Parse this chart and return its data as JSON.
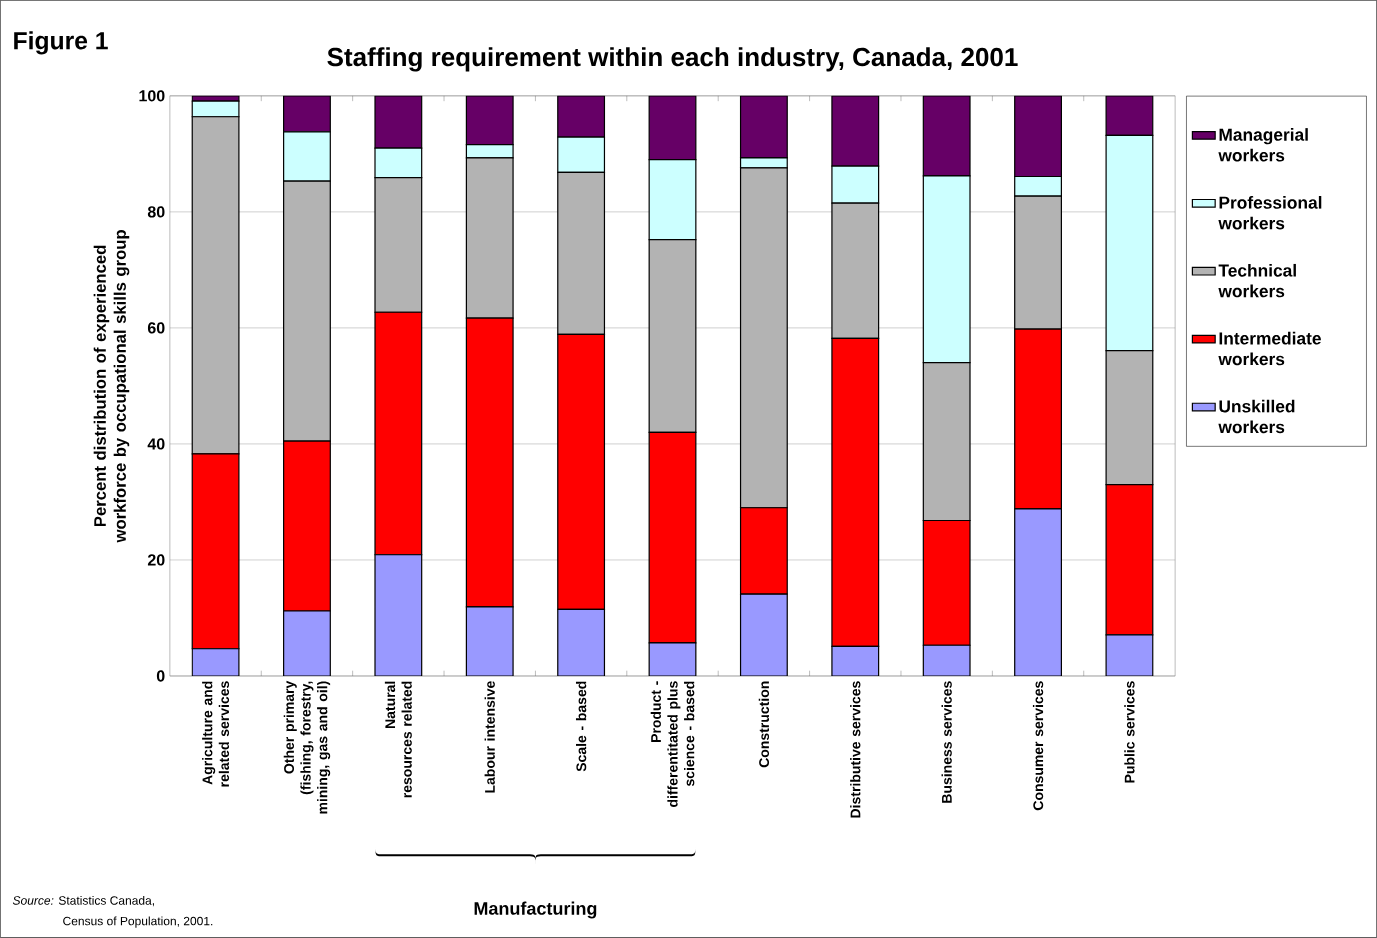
{
  "chart_data": {
    "type": "bar",
    "stacked": true,
    "title": "Staffing requirement within each industry, Canada, 2001",
    "ylabel": "Percent distribution of experienced workforce by occupational skills group",
    "categories": [
      "Agriculture and related services",
      "Other primary (fishing, forestry, mining, gas and oil)",
      "Natural resources related",
      "Labour intensive",
      "Scale - based",
      "Product - differentitated plus science - based",
      "Construction",
      "Distributive services",
      "Business services",
      "Consumer services",
      "Public services"
    ],
    "series": [
      {
        "name": "Unskilled workers",
        "color": "#9999ff",
        "values": [
          4.7,
          11.2,
          20.9,
          11.9,
          11.5,
          5.7,
          14.1,
          5.1,
          5.3,
          28.8,
          7.1
        ]
      },
      {
        "name": "Intermediate workers",
        "color": "#ff0000",
        "values": [
          33.6,
          29.3,
          41.8,
          49.8,
          47.4,
          36.3,
          14.9,
          53.1,
          21.5,
          31.0,
          25.9
        ]
      },
      {
        "name": "Technical workers",
        "color": "#b3b3b3",
        "values": [
          58.1,
          44.8,
          23.2,
          27.6,
          27.9,
          33.2,
          58.6,
          23.3,
          27.2,
          22.9,
          23.1
        ]
      },
      {
        "name": "Professional workers",
        "color": "#ccffff",
        "values": [
          2.7,
          8.5,
          5.1,
          2.3,
          6.1,
          13.8,
          1.7,
          6.4,
          32.2,
          3.4,
          37.1
        ]
      },
      {
        "name": "Managerial workers",
        "color": "#660066",
        "values": [
          0.9,
          6.2,
          9.0,
          8.4,
          7.1,
          11.0,
          10.7,
          12.1,
          13.8,
          13.9,
          6.8
        ]
      }
    ],
    "ylim": [
      0,
      100
    ],
    "yticks": [
      0,
      20,
      40,
      60,
      80,
      100
    ],
    "grid": "y",
    "legend": "right",
    "annotations": [
      "Figure 1",
      "Manufacturing",
      "*Source:* Statistics Canada,",
      "Census of  Population, 2001."
    ]
  }
}
